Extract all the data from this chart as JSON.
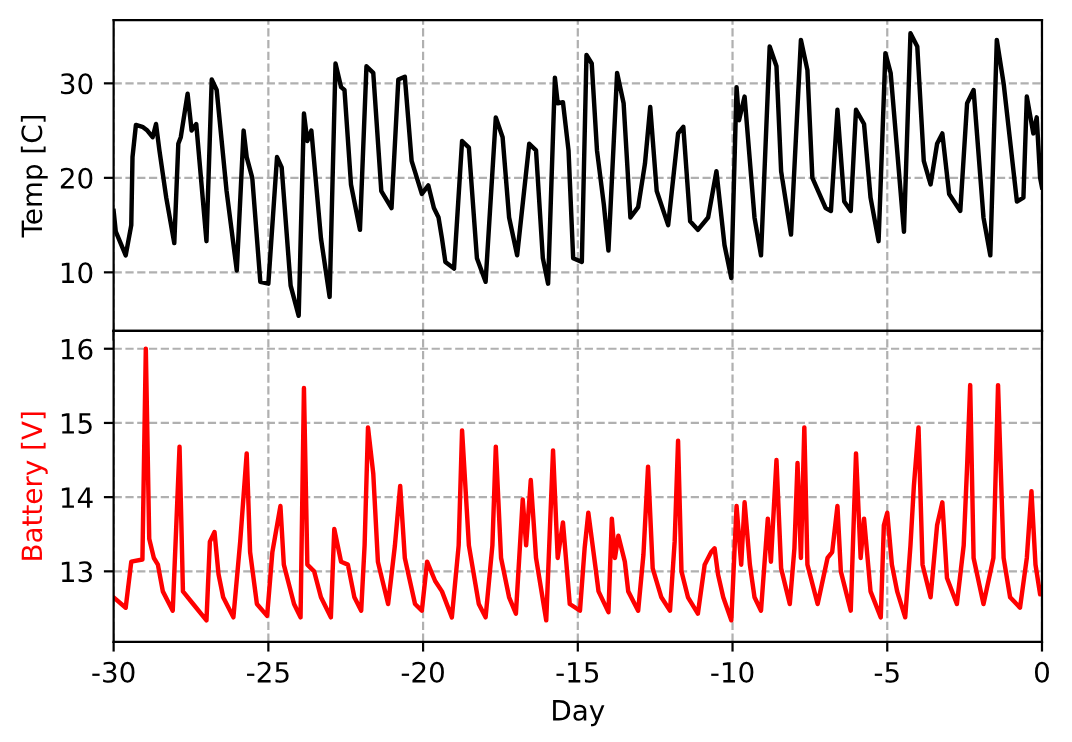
{
  "chart_data": [
    {
      "type": "line",
      "ylabel": "Temp [C]",
      "xlim": [
        -30,
        0
      ],
      "xticks": [
        -30,
        -25,
        -20,
        -15,
        -10,
        -5,
        0
      ],
      "ylim": [
        3.8,
        36.7
      ],
      "yticks": [
        10,
        20,
        30
      ],
      "grid": true,
      "tick_labels": "y",
      "series": [
        {
          "color": "#000000",
          "x": [
            -30.0,
            -29.93,
            -29.61,
            -29.43,
            -29.39,
            -29.28,
            -29.07,
            -28.91,
            -28.74,
            -28.63,
            -28.52,
            -28.3,
            -28.04,
            -27.91,
            -27.83,
            -27.61,
            -27.48,
            -27.33,
            -27.0,
            -26.83,
            -26.67,
            -26.35,
            -26.02,
            -25.8,
            -25.7,
            -25.52,
            -25.26,
            -25.0,
            -24.72,
            -24.57,
            -24.28,
            -24.02,
            -23.85,
            -23.74,
            -23.61,
            -23.3,
            -23.02,
            -22.83,
            -22.65,
            -22.54,
            -22.33,
            -22.04,
            -21.83,
            -21.61,
            -21.35,
            -21.02,
            -20.8,
            -20.59,
            -20.37,
            -20.04,
            -19.83,
            -19.65,
            -19.5,
            -19.39,
            -19.28,
            -19.0,
            -18.74,
            -18.52,
            -18.26,
            -17.98,
            -17.65,
            -17.43,
            -17.22,
            -16.96,
            -16.57,
            -16.35,
            -16.13,
            -15.96,
            -15.74,
            -15.65,
            -15.48,
            -15.3,
            -15.15,
            -14.87,
            -14.72,
            -14.55,
            -14.38,
            -14.16,
            -14.01,
            -13.73,
            -13.52,
            -13.3,
            -13.05,
            -12.83,
            -12.66,
            -12.45,
            -12.08,
            -11.76,
            -11.59,
            -11.37,
            -11.12,
            -10.79,
            -10.52,
            -10.26,
            -10.04,
            -9.87,
            -9.79,
            -9.61,
            -9.29,
            -9.08,
            -8.8,
            -8.58,
            -8.43,
            -8.11,
            -7.79,
            -7.58,
            -7.42,
            -6.99,
            -6.82,
            -6.61,
            -6.39,
            -6.18,
            -6.01,
            -5.75,
            -5.54,
            -5.28,
            -5.06,
            -4.89,
            -4.46,
            -4.25,
            -4.03,
            -3.82,
            -3.6,
            -3.39,
            -3.22,
            -3.0,
            -2.64,
            -2.42,
            -2.21,
            -1.89,
            -1.67,
            -1.46,
            -1.24,
            -0.81,
            -0.6,
            -0.49,
            -0.28,
            -0.17,
            -0.06,
            0
          ],
          "values": [
            16.5,
            14.3,
            11.8,
            15.0,
            22.2,
            25.6,
            25.4,
            25.0,
            24.3,
            25.7,
            22.9,
            17.9,
            13.1,
            23.6,
            24.3,
            28.9,
            25.0,
            25.7,
            13.3,
            30.4,
            29.3,
            18.6,
            10.2,
            25.0,
            22.2,
            20.0,
            9.0,
            8.8,
            22.2,
            21.1,
            8.6,
            5.4,
            26.8,
            23.9,
            25.0,
            13.6,
            7.4,
            32.1,
            29.6,
            29.3,
            19.3,
            14.5,
            31.8,
            31.1,
            18.6,
            16.8,
            30.4,
            30.7,
            21.8,
            18.3,
            19.2,
            16.8,
            15.8,
            13.6,
            11.1,
            10.4,
            23.9,
            23.2,
            11.5,
            9.0,
            26.4,
            24.3,
            15.8,
            11.8,
            23.6,
            22.9,
            11.5,
            8.8,
            30.6,
            27.9,
            28.0,
            22.9,
            11.5,
            11.1,
            33.0,
            32.1,
            22.9,
            17.2,
            12.3,
            31.1,
            27.9,
            15.8,
            16.9,
            21.5,
            27.5,
            18.6,
            15.0,
            24.7,
            25.4,
            15.4,
            14.5,
            15.8,
            20.7,
            12.9,
            9.4,
            29.6,
            26.1,
            28.6,
            15.8,
            11.8,
            33.9,
            31.8,
            20.7,
            14.0,
            34.6,
            31.4,
            20.0,
            16.8,
            16.5,
            27.2,
            17.5,
            16.5,
            27.2,
            25.7,
            17.9,
            13.3,
            33.2,
            31.1,
            14.3,
            35.3,
            33.9,
            21.8,
            19.3,
            23.6,
            24.7,
            18.3,
            16.5,
            27.9,
            29.3,
            15.8,
            11.8,
            34.6,
            30.0,
            17.5,
            17.9,
            28.6,
            24.7,
            26.4,
            20.0,
            19.0
          ]
        }
      ]
    },
    {
      "type": "line",
      "xlabel": "Day",
      "ylabel": "Battery [V]",
      "xlim": [
        -30,
        0
      ],
      "xticks": [
        -30,
        -25,
        -20,
        -15,
        -10,
        -5,
        0
      ],
      "ylim": [
        12.05,
        16.24
      ],
      "yticks": [
        13,
        14,
        15,
        16
      ],
      "grid": true,
      "series": [
        {
          "color": "#ff0000",
          "x": [
            -30.0,
            -29.61,
            -29.43,
            -29.07,
            -28.96,
            -28.85,
            -28.7,
            -28.57,
            -28.41,
            -28.09,
            -27.98,
            -27.87,
            -27.76,
            -27.43,
            -27.0,
            -26.89,
            -26.74,
            -26.61,
            -26.46,
            -26.13,
            -25.91,
            -25.7,
            -25.59,
            -25.37,
            -25.04,
            -24.87,
            -24.61,
            -24.5,
            -24.17,
            -23.96,
            -23.85,
            -23.74,
            -23.52,
            -23.3,
            -22.98,
            -22.87,
            -22.65,
            -22.43,
            -22.22,
            -22.0,
            -21.89,
            -21.78,
            -21.61,
            -21.46,
            -21.13,
            -20.91,
            -20.74,
            -20.59,
            -20.26,
            -20.04,
            -19.87,
            -19.61,
            -19.39,
            -19.07,
            -18.85,
            -18.74,
            -18.52,
            -18.2,
            -17.98,
            -17.76,
            -17.65,
            -17.48,
            -17.22,
            -17.0,
            -16.78,
            -16.67,
            -16.52,
            -16.35,
            -16.02,
            -15.8,
            -15.65,
            -15.48,
            -15.26,
            -14.93,
            -14.78,
            -14.66,
            -14.44,
            -14.33,
            -14.01,
            -13.9,
            -13.8,
            -13.69,
            -13.48,
            -13.37,
            -13.05,
            -12.88,
            -12.73,
            -12.58,
            -12.3,
            -12.02,
            -11.87,
            -11.76,
            -11.65,
            -11.44,
            -11.12,
            -10.9,
            -10.69,
            -10.58,
            -10.47,
            -10.3,
            -10.04,
            -9.87,
            -9.72,
            -9.61,
            -9.44,
            -9.29,
            -9.08,
            -8.86,
            -8.76,
            -8.58,
            -8.43,
            -8.15,
            -8.0,
            -7.9,
            -7.79,
            -7.68,
            -7.58,
            -7.25,
            -6.93,
            -6.78,
            -6.61,
            -6.5,
            -6.18,
            -6.01,
            -5.86,
            -5.75,
            -5.54,
            -5.21,
            -5.11,
            -5.0,
            -4.85,
            -4.68,
            -4.42,
            -4.25,
            -4.14,
            -3.99,
            -3.86,
            -3.6,
            -3.39,
            -3.22,
            -3.07,
            -2.75,
            -2.53,
            -2.42,
            -2.32,
            -2.21,
            -1.89,
            -1.57,
            -1.42,
            -1.24,
            -1.03,
            -0.71,
            -0.49,
            -0.34,
            -0.21,
            -0.06,
            0
          ],
          "values": [
            12.65,
            12.51,
            13.13,
            13.16,
            16.0,
            13.44,
            13.18,
            13.09,
            12.73,
            12.47,
            13.57,
            14.68,
            12.73,
            12.56,
            12.34,
            13.4,
            13.53,
            12.96,
            12.65,
            12.38,
            13.4,
            14.59,
            13.26,
            12.56,
            12.4,
            13.26,
            13.88,
            13.09,
            12.56,
            12.38,
            15.47,
            13.09,
            13.0,
            12.65,
            12.38,
            13.57,
            13.13,
            13.09,
            12.65,
            12.47,
            13.35,
            14.94,
            14.32,
            13.13,
            12.56,
            13.35,
            14.15,
            13.18,
            12.56,
            12.47,
            13.13,
            12.87,
            12.73,
            12.38,
            13.35,
            14.9,
            13.35,
            12.56,
            12.38,
            13.35,
            14.68,
            13.18,
            12.65,
            12.43,
            13.97,
            13.35,
            14.23,
            13.18,
            12.34,
            14.63,
            13.18,
            13.66,
            12.56,
            12.47,
            13.31,
            13.79,
            13.09,
            12.73,
            12.45,
            13.71,
            13.18,
            13.48,
            13.13,
            12.73,
            12.47,
            13.22,
            14.41,
            13.04,
            12.65,
            12.47,
            13.4,
            14.76,
            13.0,
            12.65,
            12.43,
            13.09,
            13.26,
            13.31,
            12.96,
            12.65,
            12.34,
            13.88,
            13.09,
            13.93,
            13.09,
            12.65,
            12.47,
            13.71,
            13.13,
            14.5,
            13.04,
            12.56,
            13.31,
            14.46,
            13.18,
            14.94,
            13.09,
            12.56,
            13.18,
            13.26,
            13.88,
            13.0,
            12.47,
            14.59,
            13.18,
            13.71,
            12.73,
            12.38,
            13.62,
            13.79,
            13.09,
            12.73,
            12.38,
            13.35,
            14.15,
            14.94,
            13.09,
            12.65,
            13.62,
            13.93,
            12.91,
            12.56,
            13.35,
            14.41,
            15.51,
            13.18,
            12.56,
            13.18,
            15.51,
            13.18,
            12.65,
            12.51,
            13.18,
            14.08,
            13.09,
            12.69,
            12.7
          ]
        }
      ]
    }
  ]
}
